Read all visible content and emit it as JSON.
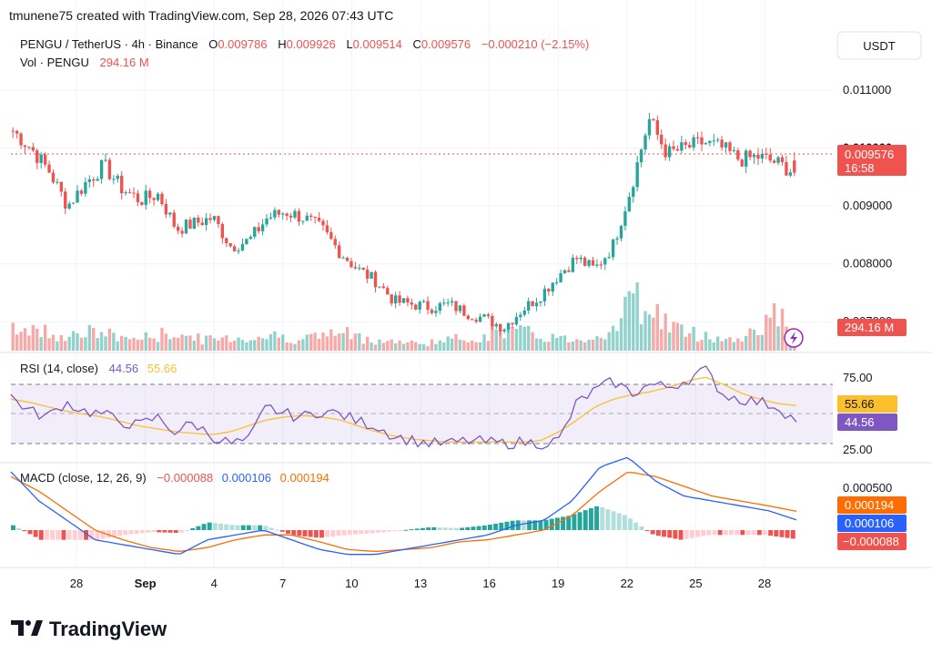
{
  "header": {
    "credit": "tmunene75 created with TradingView.com, Sep 28, 2026 07:43 UTC",
    "symbol": "PENGU / TetherUS · 4h · Binance",
    "o_label": "O",
    "o_value": "0.009786",
    "h_label": "H",
    "h_value": "0.009926",
    "l_label": "L",
    "l_value": "0.009514",
    "c_label": "C",
    "c_value": "0.009576",
    "change": "−0.000210 (−2.15%)",
    "vol_label": "Vol · PENGU",
    "vol_value": "294.16 M"
  },
  "price_axis": {
    "currency": "USDT",
    "ticks": [
      "0.011000",
      "0.010000",
      "0.009000",
      "0.008000",
      "0.007000"
    ],
    "last_price": "0.009576",
    "countdown": "16:58",
    "volume_badge": "294.16 M"
  },
  "rsi": {
    "label": "RSI (14, close)",
    "rsi_value": "44.56",
    "ma_value": "55.66",
    "ticks": [
      "75.00",
      "25.00"
    ]
  },
  "macd": {
    "label": "MACD (close, 12, 26, 9)",
    "hist_value": "−0.000088",
    "macd_value": "0.000106",
    "signal_value": "0.000194",
    "ticks": [
      "0.000500"
    ]
  },
  "x_axis": {
    "labels": [
      "28",
      "Sep",
      "4",
      "7",
      "10",
      "13",
      "16",
      "19",
      "22",
      "25",
      "28"
    ]
  },
  "brand": {
    "name": "TradingView"
  },
  "colors": {
    "up": "#26a69a",
    "down": "#ef5350",
    "rsi": "#7e57c2",
    "rsi_ma": "#fbc02d",
    "macd": "#2962ff",
    "signal": "#ff6d00",
    "grid": "#f0f3fa",
    "text": "#131722"
  },
  "chart_data": [
    {
      "type": "candlestick",
      "price_range": [
        0.0065,
        0.0113
      ],
      "x_range": [
        "Aug 25",
        "Sep 28"
      ],
      "x_labels": [
        "28",
        "Sep",
        "4",
        "7",
        "10",
        "13",
        "16",
        "19",
        "22",
        "25",
        "28"
      ],
      "close_path": [
        0.0103,
        0.01,
        0.0096,
        0.009,
        0.0094,
        0.0097,
        0.0093,
        0.0091,
        0.0092,
        0.0086,
        0.0087,
        0.0088,
        0.0083,
        0.0084,
        0.0088,
        0.0089,
        0.0088,
        0.0086,
        0.0082,
        0.0079,
        0.0077,
        0.00735,
        0.0073,
        0.00725,
        0.0073,
        0.00715,
        0.00705,
        0.0069,
        0.0072,
        0.00745,
        0.0078,
        0.0081,
        0.0079,
        0.0083,
        0.0093,
        0.0105,
        0.0099,
        0.01,
        0.0101,
        0.01,
        0.0098,
        0.00985,
        0.00975,
        0.00958
      ],
      "open": 0.009786,
      "high": 0.009926,
      "low": 0.009514,
      "close": 0.009576
    },
    {
      "type": "bar",
      "name": "Vol · PENGU",
      "values_relative": [
        0.4,
        0.35,
        0.3,
        0.25,
        0.3,
        0.28,
        0.22,
        0.2,
        0.25,
        0.3,
        0.2,
        0.18,
        0.22,
        0.2,
        0.25,
        0.22,
        0.2,
        0.25,
        0.3,
        0.22,
        0.18,
        0.15,
        0.12,
        0.14,
        0.18,
        0.2,
        0.25,
        0.35,
        0.3,
        0.25,
        0.2,
        0.18,
        0.25,
        0.35,
        0.85,
        0.75,
        0.45,
        0.3,
        0.25,
        0.2,
        0.18,
        0.4,
        0.6,
        0.3
      ],
      "last_value": "294.16 M"
    },
    {
      "type": "line",
      "name": "RSI (14, close)",
      "ylim": [
        15,
        85
      ],
      "levels": [
        70,
        50,
        30
      ],
      "values": [
        62,
        52,
        48,
        58,
        52,
        50,
        45,
        42,
        48,
        38,
        44,
        35,
        30,
        32,
        55,
        50,
        48,
        52,
        50,
        45,
        42,
        35,
        32,
        30,
        30,
        32,
        31,
        30,
        31,
        30,
        32,
        58,
        66,
        72,
        64,
        70,
        68,
        73,
        80,
        63,
        60,
        58,
        55,
        44.56
      ],
      "ma": [
        60,
        58,
        55,
        52,
        50,
        48,
        45,
        42,
        40,
        38,
        37,
        36,
        38,
        42,
        46,
        48,
        49,
        48,
        46,
        42,
        38,
        35,
        33,
        32,
        31,
        31,
        31,
        31,
        31,
        32,
        38,
        46,
        55,
        60,
        63,
        65,
        68,
        72,
        75,
        70,
        64,
        60,
        57,
        55.66
      ]
    },
    {
      "type": "line",
      "name": "MACD (close, 12, 26, 9)",
      "ylim": [
        -0.00045,
        0.00085
      ],
      "macd": [
        0.0006,
        0.0003,
        0.0001,
        -0.0001,
        -0.00015,
        -0.0002,
        -0.00025,
        -0.0001,
        -5e-05,
        0.0,
        -0.0001,
        -0.0002,
        -0.00025,
        -0.00025,
        -0.0002,
        -0.00015,
        -0.0001,
        -5e-05,
        5e-05,
        0.0001,
        0.0003,
        0.00065,
        0.00075,
        0.0005,
        0.00035,
        0.0003,
        0.00025,
        0.0002,
        0.000106
      ],
      "signal": [
        0.00055,
        0.0004,
        0.0002,
        0.0,
        -0.0001,
        -0.00018,
        -0.00022,
        -0.00018,
        -0.0001,
        -5e-05,
        -5e-05,
        -0.00012,
        -0.0002,
        -0.00022,
        -0.0002,
        -0.00018,
        -0.00012,
        -0.0001,
        -5e-05,
        0.0,
        0.00015,
        0.0004,
        0.0006,
        0.00055,
        0.00045,
        0.00035,
        0.0003,
        0.00025,
        0.000194
      ],
      "histogram_last": -8.8e-05
    }
  ]
}
